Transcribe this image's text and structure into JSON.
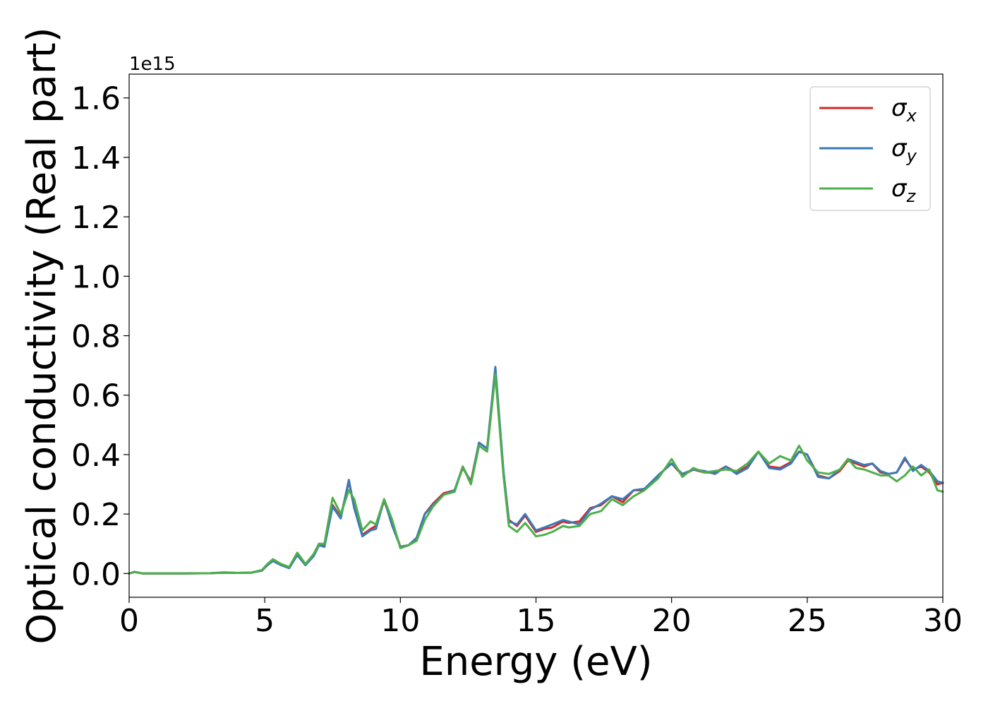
{
  "chart_data": {
    "type": "line",
    "xlabel": "Energy (eV)",
    "ylabel": "Optical conductivity (Real part)",
    "offset_label": "1e15",
    "xlim": [
      0,
      30
    ],
    "ylim": [
      -0.08,
      1.68
    ],
    "xticks": [
      0,
      5,
      10,
      15,
      20,
      25,
      30
    ],
    "xtick_labels": [
      "0",
      "5",
      "10",
      "15",
      "20",
      "25",
      "30"
    ],
    "yticks": [
      0.0,
      0.2,
      0.4,
      0.6,
      0.8,
      1.0,
      1.2,
      1.4,
      1.6
    ],
    "ytick_labels": [
      "0.0",
      "0.2",
      "0.4",
      "0.6",
      "0.8",
      "1.0",
      "1.2",
      "1.4",
      "1.6"
    ],
    "grid": false,
    "legend_position": "top-right",
    "legend": [
      {
        "symbol": "σ",
        "sub": "x",
        "color": "#d62728"
      },
      {
        "symbol": "σ",
        "sub": "y",
        "color": "#3a7ab8"
      },
      {
        "symbol": "σ",
        "sub": "z",
        "color": "#4daf4a"
      }
    ],
    "series": [
      {
        "name": "σx",
        "color": "#d62728",
        "x": [
          0,
          0.2,
          0.5,
          1,
          2,
          3,
          3.5,
          4,
          4.5,
          4.9,
          5.1,
          5.3,
          5.6,
          5.9,
          6.2,
          6.5,
          6.8,
          7.0,
          7.2,
          7.5,
          7.8,
          8.1,
          8.3,
          8.6,
          8.9,
          9.1,
          9.4,
          9.7,
          10.0,
          10.3,
          10.6,
          10.9,
          11.2,
          11.6,
          12.0,
          12.3,
          12.6,
          12.9,
          13.2,
          13.5,
          13.8,
          14.0,
          14.3,
          14.6,
          15.0,
          15.3,
          15.6,
          16.0,
          16.2,
          16.6,
          17.0,
          17.4,
          17.8,
          18.2,
          18.6,
          19.0,
          19.5,
          20.0,
          20.4,
          20.8,
          21.2,
          21.6,
          22.0,
          22.4,
          22.8,
          23.2,
          23.6,
          24.0,
          24.4,
          24.7,
          25.0,
          25.4,
          25.8,
          26.2,
          26.5,
          26.8,
          27.1,
          27.4,
          27.7,
          28.0,
          28.3,
          28.6,
          28.9,
          29.2,
          29.5,
          29.8,
          30
        ],
        "values": [
          0.0,
          0.005,
          0.0,
          0.0,
          0.0,
          0.001,
          0.003,
          0.002,
          0.003,
          0.01,
          0.03,
          0.045,
          0.03,
          0.02,
          0.065,
          0.03,
          0.06,
          0.1,
          0.09,
          0.23,
          0.19,
          0.31,
          0.22,
          0.13,
          0.15,
          0.16,
          0.245,
          0.17,
          0.09,
          0.095,
          0.12,
          0.2,
          0.235,
          0.27,
          0.28,
          0.355,
          0.31,
          0.44,
          0.42,
          0.685,
          0.34,
          0.18,
          0.16,
          0.195,
          0.14,
          0.15,
          0.155,
          0.175,
          0.17,
          0.175,
          0.22,
          0.23,
          0.26,
          0.24,
          0.28,
          0.28,
          0.33,
          0.37,
          0.33,
          0.35,
          0.34,
          0.34,
          0.36,
          0.34,
          0.36,
          0.41,
          0.36,
          0.355,
          0.375,
          0.41,
          0.4,
          0.33,
          0.32,
          0.345,
          0.38,
          0.37,
          0.36,
          0.37,
          0.34,
          0.335,
          0.34,
          0.385,
          0.35,
          0.36,
          0.34,
          0.3,
          0.305
        ]
      },
      {
        "name": "σy",
        "color": "#3a7ab8",
        "x": [
          0,
          0.2,
          0.5,
          1,
          2,
          3,
          3.5,
          4,
          4.5,
          4.9,
          5.1,
          5.3,
          5.6,
          5.9,
          6.2,
          6.5,
          6.8,
          7.0,
          7.2,
          7.5,
          7.8,
          8.1,
          8.3,
          8.6,
          8.9,
          9.1,
          9.4,
          9.7,
          10.0,
          10.3,
          10.6,
          10.9,
          11.2,
          11.6,
          12.0,
          12.3,
          12.6,
          12.9,
          13.2,
          13.5,
          13.8,
          14.0,
          14.3,
          14.6,
          15.0,
          15.3,
          15.6,
          16.0,
          16.2,
          16.6,
          17.0,
          17.4,
          17.8,
          18.2,
          18.6,
          19.0,
          19.5,
          20.0,
          20.4,
          20.8,
          21.2,
          21.6,
          22.0,
          22.4,
          22.8,
          23.2,
          23.6,
          24.0,
          24.4,
          24.7,
          25.0,
          25.4,
          25.8,
          26.2,
          26.5,
          26.8,
          27.1,
          27.4,
          27.7,
          28.0,
          28.3,
          28.6,
          28.9,
          29.2,
          29.5,
          29.8,
          30
        ],
        "values": [
          0.0,
          0.005,
          0.0,
          0.0,
          0.0,
          0.001,
          0.003,
          0.002,
          0.003,
          0.01,
          0.028,
          0.042,
          0.028,
          0.018,
          0.062,
          0.028,
          0.058,
          0.095,
          0.09,
          0.225,
          0.185,
          0.315,
          0.22,
          0.125,
          0.145,
          0.15,
          0.25,
          0.16,
          0.09,
          0.095,
          0.12,
          0.2,
          0.23,
          0.265,
          0.28,
          0.36,
          0.305,
          0.44,
          0.42,
          0.695,
          0.345,
          0.175,
          0.165,
          0.2,
          0.145,
          0.155,
          0.165,
          0.18,
          0.175,
          0.165,
          0.215,
          0.235,
          0.26,
          0.25,
          0.28,
          0.285,
          0.33,
          0.37,
          0.335,
          0.35,
          0.345,
          0.335,
          0.36,
          0.335,
          0.355,
          0.41,
          0.355,
          0.35,
          0.37,
          0.41,
          0.4,
          0.325,
          0.32,
          0.35,
          0.385,
          0.375,
          0.365,
          0.37,
          0.345,
          0.335,
          0.34,
          0.39,
          0.345,
          0.365,
          0.345,
          0.31,
          0.305
        ]
      },
      {
        "name": "σz",
        "color": "#4daf4a",
        "x": [
          0,
          0.2,
          0.5,
          1,
          2,
          3,
          3.5,
          4,
          4.5,
          4.9,
          5.1,
          5.3,
          5.6,
          5.9,
          6.2,
          6.5,
          6.8,
          7.0,
          7.2,
          7.5,
          7.8,
          8.1,
          8.3,
          8.6,
          8.9,
          9.1,
          9.4,
          9.7,
          10.0,
          10.3,
          10.6,
          10.9,
          11.2,
          11.6,
          12.0,
          12.3,
          12.6,
          12.9,
          13.2,
          13.5,
          13.8,
          14.0,
          14.3,
          14.6,
          15.0,
          15.3,
          15.6,
          16.0,
          16.2,
          16.6,
          17.0,
          17.4,
          17.8,
          18.2,
          18.6,
          19.0,
          19.5,
          20.0,
          20.4,
          20.8,
          21.2,
          21.6,
          22.0,
          22.4,
          22.8,
          23.2,
          23.6,
          24.0,
          24.4,
          24.7,
          25.0,
          25.4,
          25.8,
          26.2,
          26.5,
          26.8,
          27.1,
          27.4,
          27.7,
          28.0,
          28.3,
          28.6,
          28.9,
          29.2,
          29.5,
          29.8,
          30
        ],
        "values": [
          0.0,
          0.006,
          0.0,
          0.0,
          0.0,
          0.001,
          0.004,
          0.002,
          0.003,
          0.012,
          0.032,
          0.048,
          0.032,
          0.022,
          0.07,
          0.032,
          0.065,
          0.1,
          0.1,
          0.255,
          0.2,
          0.28,
          0.25,
          0.145,
          0.175,
          0.165,
          0.25,
          0.18,
          0.085,
          0.095,
          0.11,
          0.18,
          0.225,
          0.265,
          0.275,
          0.36,
          0.3,
          0.43,
          0.41,
          0.67,
          0.33,
          0.16,
          0.14,
          0.17,
          0.125,
          0.13,
          0.14,
          0.16,
          0.155,
          0.16,
          0.2,
          0.21,
          0.25,
          0.23,
          0.26,
          0.28,
          0.32,
          0.385,
          0.325,
          0.355,
          0.34,
          0.345,
          0.35,
          0.345,
          0.37,
          0.41,
          0.37,
          0.395,
          0.38,
          0.43,
          0.38,
          0.34,
          0.335,
          0.35,
          0.385,
          0.355,
          0.35,
          0.34,
          0.33,
          0.33,
          0.31,
          0.33,
          0.36,
          0.33,
          0.35,
          0.28,
          0.275
        ]
      }
    ]
  }
}
